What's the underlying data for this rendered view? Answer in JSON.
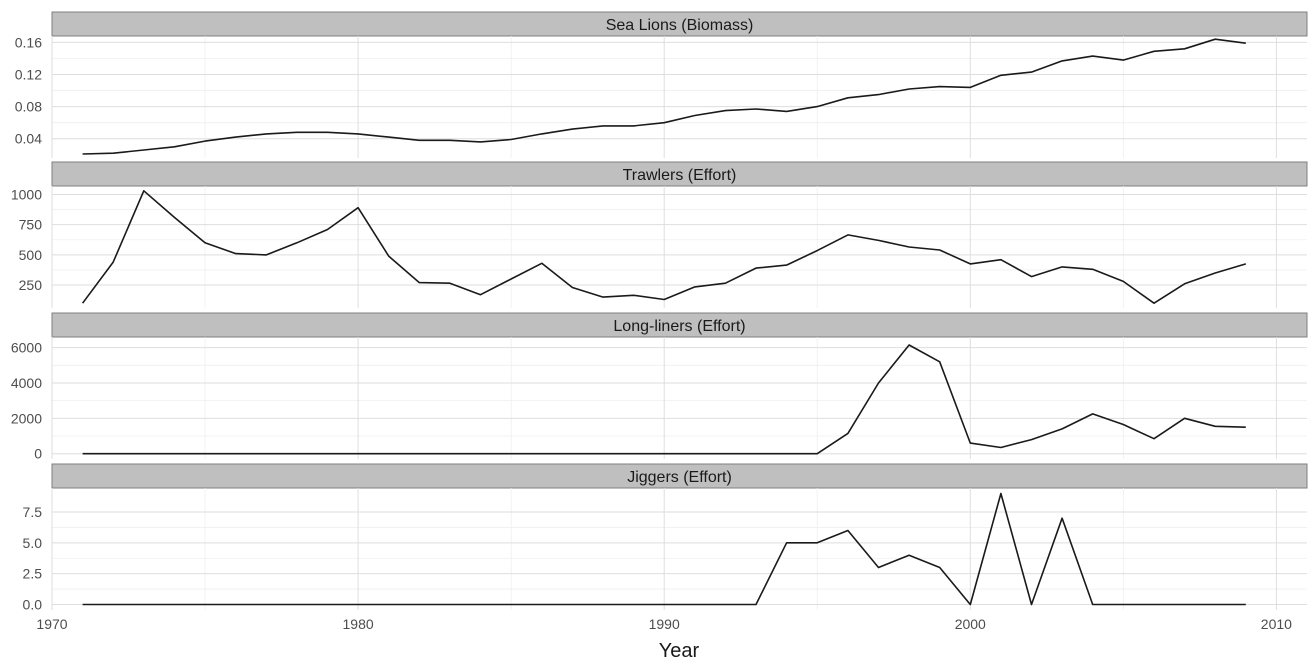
{
  "chart_data": {
    "type": "line",
    "layout": "faceted",
    "xlabel": "Year",
    "x_ticks": [
      1970,
      1980,
      1990,
      2000,
      2010
    ],
    "xlim": [
      1970,
      2011
    ],
    "grid": true,
    "x": [
      1971,
      1972,
      1973,
      1974,
      1975,
      1976,
      1977,
      1978,
      1979,
      1980,
      1981,
      1982,
      1983,
      1984,
      1985,
      1986,
      1987,
      1988,
      1989,
      1990,
      1991,
      1992,
      1993,
      1994,
      1995,
      1996,
      1997,
      1998,
      1999,
      2000,
      2001,
      2002,
      2003,
      2004,
      2005,
      2006,
      2007,
      2008,
      2009
    ],
    "panels": [
      {
        "title": "Sea Lions (Biomass)",
        "ylim": [
          0.016,
          0.168
        ],
        "y_ticks": [
          0.04,
          0.08,
          0.12,
          0.16
        ],
        "y_tick_labels": [
          "0.04",
          "0.08",
          "0.12",
          "0.16"
        ],
        "values": [
          0.021,
          0.022,
          0.026,
          0.03,
          0.037,
          0.042,
          0.046,
          0.048,
          0.048,
          0.046,
          0.042,
          0.038,
          0.038,
          0.036,
          0.039,
          0.046,
          0.052,
          0.056,
          0.056,
          0.06,
          0.069,
          0.075,
          0.077,
          0.074,
          0.08,
          0.091,
          0.095,
          0.102,
          0.105,
          0.104,
          0.119,
          0.123,
          0.137,
          0.143,
          0.138,
          0.149,
          0.152,
          0.164,
          0.159
        ]
      },
      {
        "title": "Trawlers (Effort)",
        "ylim": [
          60,
          1070
        ],
        "y_ticks": [
          250,
          500,
          750,
          1000
        ],
        "y_tick_labels": [
          "250",
          "500",
          "750",
          "1000"
        ],
        "values": [
          100,
          440,
          1030,
          810,
          600,
          510,
          500,
          600,
          710,
          890,
          490,
          270,
          265,
          170,
          300,
          430,
          230,
          150,
          165,
          130,
          235,
          265,
          390,
          415,
          535,
          665,
          620,
          565,
          540,
          425,
          460,
          320,
          400,
          380,
          280,
          100,
          260,
          350,
          425
        ]
      },
      {
        "title": "Long-liners (Effort)",
        "ylim": [
          -300,
          6600
        ],
        "y_ticks": [
          0,
          2000,
          4000,
          6000
        ],
        "y_tick_labels": [
          "0",
          "2000",
          "4000",
          "6000"
        ],
        "values": [
          0,
          0,
          0,
          0,
          0,
          0,
          0,
          0,
          0,
          0,
          0,
          0,
          0,
          0,
          0,
          0,
          0,
          0,
          0,
          0,
          0,
          0,
          0,
          0,
          0,
          1150,
          4000,
          6150,
          5200,
          600,
          350,
          800,
          1400,
          2250,
          1650,
          850,
          2000,
          1550,
          1500
        ]
      },
      {
        "title": "Jiggers (Effort)",
        "ylim": [
          -0.45,
          9.45
        ],
        "y_ticks": [
          0,
          2.5,
          5,
          7.5
        ],
        "y_tick_labels": [
          "0.0",
          "2.5",
          "5.0",
          "7.5"
        ],
        "values": [
          0,
          0,
          0,
          0,
          0,
          0,
          0,
          0,
          0,
          0,
          0,
          0,
          0,
          0,
          0,
          0,
          0,
          0,
          0,
          0,
          0,
          0,
          0,
          5,
          5,
          6,
          3,
          4,
          3,
          0,
          9,
          0,
          7,
          0,
          0,
          0,
          0,
          0,
          0
        ]
      }
    ]
  }
}
